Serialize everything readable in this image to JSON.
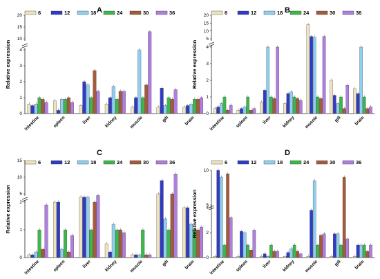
{
  "legend": {
    "labels": [
      "6",
      "12",
      "18",
      "24",
      "30",
      "36"
    ],
    "colors": [
      "#efe3bf",
      "#2f3bc7",
      "#8fd0f0",
      "#3cb84a",
      "#a65a3c",
      "#b07ee0"
    ]
  },
  "categories": [
    "intestine",
    "spleen",
    "liver",
    "kidney",
    "muscle",
    "gill",
    "brain"
  ],
  "chart_data": [
    {
      "type": "bar",
      "title": "A",
      "ylabel": "Relative expression",
      "categories": [
        "intestine",
        "spleen",
        "liver",
        "kidney",
        "muscle",
        "gill",
        "brain"
      ],
      "y_axis": {
        "lower_ticks": [
          0,
          1,
          2,
          3,
          4
        ],
        "upper_ticks": [
          10,
          15,
          20
        ],
        "broken": true
      },
      "series": [
        {
          "name": "6",
          "values": [
            0.6,
            0.8,
            0.5,
            0.6,
            0.4,
            0.4,
            0.4
          ]
        },
        {
          "name": "12",
          "values": [
            0.5,
            0.2,
            2.0,
            1.0,
            1.0,
            1.6,
            0.5
          ]
        },
        {
          "name": "18",
          "values": [
            0.6,
            0.9,
            1.8,
            1.7,
            4.0,
            0.5,
            0.6
          ]
        },
        {
          "name": "24",
          "values": [
            1.0,
            0.9,
            1.0,
            0.9,
            1.0,
            1.0,
            0.9
          ]
        },
        {
          "name": "30",
          "values": [
            0.9,
            1.0,
            2.7,
            1.4,
            1.8,
            0.9,
            0.9
          ]
        },
        {
          "name": "36",
          "values": [
            0.7,
            0.7,
            1.4,
            1.4,
            13.0,
            1.5,
            1.0
          ]
        }
      ]
    },
    {
      "type": "bar",
      "title": "B",
      "ylabel": "Relative expression",
      "categories": [
        "intestine",
        "spleen",
        "liver",
        "kidney",
        "muscle",
        "gill",
        "brain"
      ],
      "y_axis": {
        "lower_ticks": [
          0,
          1,
          2,
          3,
          4
        ],
        "upper_ticks": [
          5,
          10,
          15,
          20
        ],
        "broken": true
      },
      "series": [
        {
          "name": "6",
          "values": [
            0.3,
            0.2,
            0.7,
            0.6,
            14.0,
            2.0,
            1.5
          ]
        },
        {
          "name": "12",
          "values": [
            0.4,
            0.3,
            1.4,
            1.2,
            6.5,
            1.1,
            1.2
          ]
        },
        {
          "name": "18",
          "values": [
            0.6,
            0.4,
            4.0,
            1.3,
            6.0,
            0.6,
            4.0
          ]
        },
        {
          "name": "24",
          "values": [
            1.0,
            1.0,
            1.0,
            1.0,
            1.0,
            1.0,
            1.0
          ]
        },
        {
          "name": "30",
          "values": [
            0.2,
            0.2,
            0.9,
            0.9,
            0.9,
            0.3,
            0.3
          ]
        },
        {
          "name": "36",
          "values": [
            0.5,
            0.3,
            4.0,
            0.8,
            6.5,
            1.7,
            0.4
          ]
        }
      ]
    },
    {
      "type": "bar",
      "title": "C",
      "ylabel": "Relative expression",
      "categories": [
        "intestine",
        "spleen",
        "liver",
        "kidney",
        "muscle",
        "gill",
        "brain"
      ],
      "y_axis": {
        "lower_ticks": [
          0,
          1,
          2
        ],
        "upper_ticks": [
          5,
          10,
          15
        ],
        "broken": true
      },
      "series": [
        {
          "name": "6",
          "values": [
            0.1,
            2.0,
            4.0,
            0.5,
            0.1,
            5.0,
            1.8
          ]
        },
        {
          "name": "12",
          "values": [
            0.1,
            2.5,
            4.0,
            0.2,
            0.1,
            9.0,
            1.8
          ]
        },
        {
          "name": "18",
          "values": [
            0.2,
            0.3,
            4.0,
            1.2,
            0.1,
            1.4,
            1.2
          ]
        },
        {
          "name": "24",
          "values": [
            1.0,
            1.0,
            1.0,
            1.0,
            1.0,
            1.0,
            1.0
          ]
        },
        {
          "name": "30",
          "values": [
            0.3,
            0.2,
            2.0,
            1.0,
            0.1,
            5.0,
            1.0
          ]
        },
        {
          "name": "36",
          "values": [
            1.9,
            0.8,
            4.5,
            0.9,
            0.1,
            11.0,
            1.1
          ]
        }
      ]
    },
    {
      "type": "bar",
      "title": "D",
      "ylabel": "Relative expression",
      "categories": [
        "intestine",
        "spleen",
        "liver",
        "kidney",
        "muscle",
        "gill",
        "brain"
      ],
      "y_axis": {
        "lower_ticks": [
          0,
          2,
          4
        ],
        "upper_ticks": [
          5,
          10
        ],
        "broken": true
      },
      "series": [
        {
          "name": "6",
          "values": [
            0.1,
            0.1,
            0.1,
            0.1,
            0.1,
            0.1,
            0.1
          ]
        },
        {
          "name": "12",
          "values": [
            11.0,
            2.1,
            0.3,
            0.4,
            3.8,
            1.9,
            1.0
          ]
        },
        {
          "name": "18",
          "values": [
            9.0,
            2.0,
            0.1,
            0.7,
            8.5,
            1.9,
            1.0
          ]
        },
        {
          "name": "24",
          "values": [
            1.0,
            1.0,
            1.0,
            1.0,
            1.0,
            1.0,
            1.0
          ]
        },
        {
          "name": "30",
          "values": [
            9.5,
            0.6,
            0.5,
            0.5,
            1.8,
            9.0,
            0.5
          ]
        },
        {
          "name": "36",
          "values": [
            3.2,
            2.2,
            0.5,
            0.3,
            1.9,
            1.5,
            1.0
          ]
        }
      ]
    }
  ]
}
